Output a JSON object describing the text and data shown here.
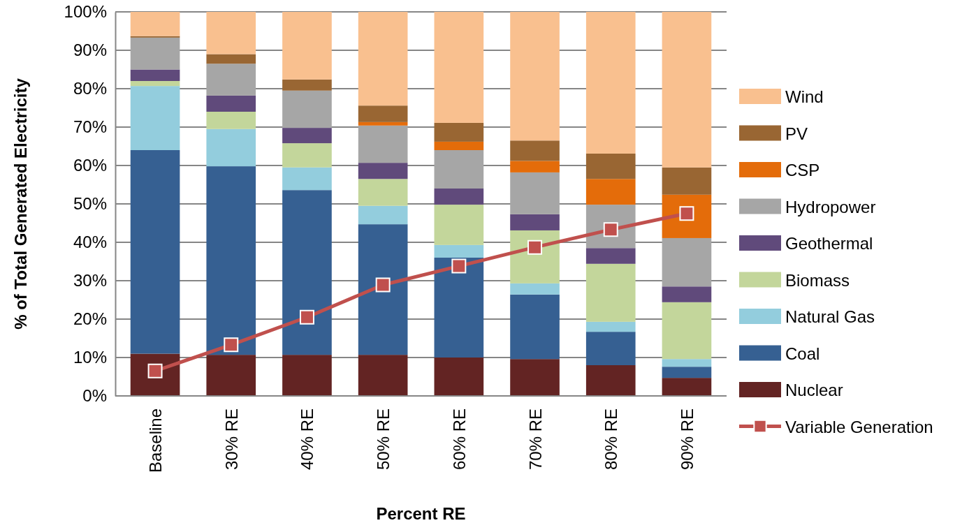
{
  "chart_data": {
    "type": "bar",
    "stacked": true,
    "xlabel": "Percent RE",
    "ylabel": "% of Total Generated  Electricity",
    "categories": [
      "Baseline",
      "30% RE",
      "40% RE",
      "50% RE",
      "60% RE",
      "70% RE",
      "80% RE",
      "90% RE"
    ],
    "series": [
      {
        "name": "Nuclear",
        "color": "#632423",
        "values": [
          11,
          10.7,
          10.7,
          10.7,
          10,
          9.6,
          8,
          4.7
        ]
      },
      {
        "name": "Coal",
        "color": "#366092",
        "values": [
          53,
          49.1,
          42.9,
          34,
          26,
          16.8,
          8.7,
          2.9
        ]
      },
      {
        "name": "Natural Gas",
        "color": "#93cddd",
        "values": [
          16.7,
          9.7,
          5.9,
          4.8,
          3.3,
          2.9,
          2.6,
          2
        ]
      },
      {
        "name": "Biomass",
        "color": "#c3d69b",
        "values": [
          1.3,
          4.5,
          6.3,
          7,
          10.5,
          13.8,
          15.1,
          14.8
        ]
      },
      {
        "name": "Geothermal",
        "color": "#604a7b",
        "values": [
          3,
          4.2,
          4,
          4.2,
          4.2,
          4.2,
          4.1,
          4.1
        ]
      },
      {
        "name": "Hydropower",
        "color": "#a6a6a6",
        "values": [
          8.3,
          8.3,
          9.7,
          9.7,
          10,
          10.9,
          11.3,
          12.6
        ]
      },
      {
        "name": "CSP",
        "color": "#e46c0a",
        "values": [
          0,
          0,
          0,
          0.9,
          2.2,
          3,
          6.7,
          11.3
        ]
      },
      {
        "name": "PV",
        "color": "#996633",
        "values": [
          0.4,
          2.5,
          2.9,
          4.3,
          4.9,
          5.3,
          6.6,
          7.1
        ]
      },
      {
        "name": "Wind",
        "color": "#f9c08f",
        "values": [
          6.3,
          11,
          17.6,
          24.4,
          28.9,
          33.5,
          36.9,
          40.5
        ]
      },
      {
        "name": "Variable Generation",
        "type": "line",
        "color": "#c0504d",
        "marker": "square",
        "values": [
          6.5,
          13.3,
          20.5,
          28.9,
          33.8,
          38.7,
          43.3,
          47.5
        ]
      }
    ],
    "ylim": [
      0,
      100
    ],
    "yticks": [
      {
        "value": 0,
        "label": "0%"
      },
      {
        "value": 10,
        "label": "10%"
      },
      {
        "value": 20,
        "label": "20%"
      },
      {
        "value": 30,
        "label": "30%"
      },
      {
        "value": 40,
        "label": "40%"
      },
      {
        "value": 50,
        "label": "50%"
      },
      {
        "value": 60,
        "label": "60%"
      },
      {
        "value": 70,
        "label": "70%"
      },
      {
        "value": 80,
        "label": "80%"
      },
      {
        "value": 90,
        "label": "90%"
      },
      {
        "value": 100,
        "label": "100%"
      }
    ],
    "grid": "y",
    "legend": "right"
  }
}
